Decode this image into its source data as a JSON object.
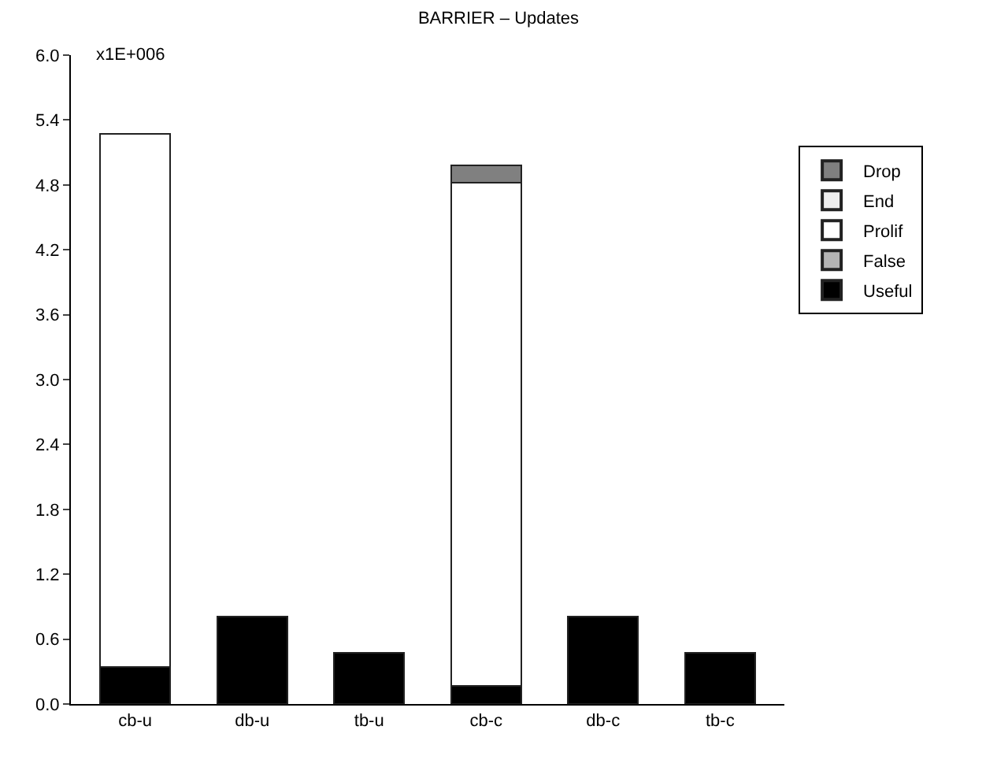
{
  "chart_data": {
    "type": "bar",
    "title": "BARRIER – Updates",
    "categories": [
      "cb-u",
      "db-u",
      "tb-u",
      "cb-c",
      "db-c",
      "tb-c"
    ],
    "stacked": true,
    "series": [
      {
        "name": "Useful",
        "color": "#000000",
        "values": [
          0.34,
          0.81,
          0.47,
          0.17,
          0.81,
          0.47
        ]
      },
      {
        "name": "False",
        "color": "#b4b4b4",
        "values": [
          null,
          null,
          null,
          null,
          null,
          null
        ]
      },
      {
        "name": "Prolif",
        "color": "#ffffff",
        "values": [
          4.93,
          null,
          null,
          4.65,
          null,
          null
        ]
      },
      {
        "name": "End",
        "color": "#eeeeee",
        "values": [
          null,
          null,
          null,
          null,
          null,
          null
        ]
      },
      {
        "name": "Drop",
        "color": "#808080",
        "values": [
          null,
          null,
          null,
          0.16,
          null,
          null
        ]
      }
    ],
    "ylim": [
      0,
      6
    ],
    "yticks": [
      {
        "value": 0,
        "label": "0.0"
      },
      0.6,
      1.2,
      1.8,
      2.4,
      {
        "value": 3,
        "label": "3.0"
      },
      3.6,
      4.2,
      4.8,
      5.4,
      {
        "value": 6,
        "label": "6.0"
      }
    ],
    "annotations": [
      "x1E+006"
    ],
    "legend": "top right"
  }
}
